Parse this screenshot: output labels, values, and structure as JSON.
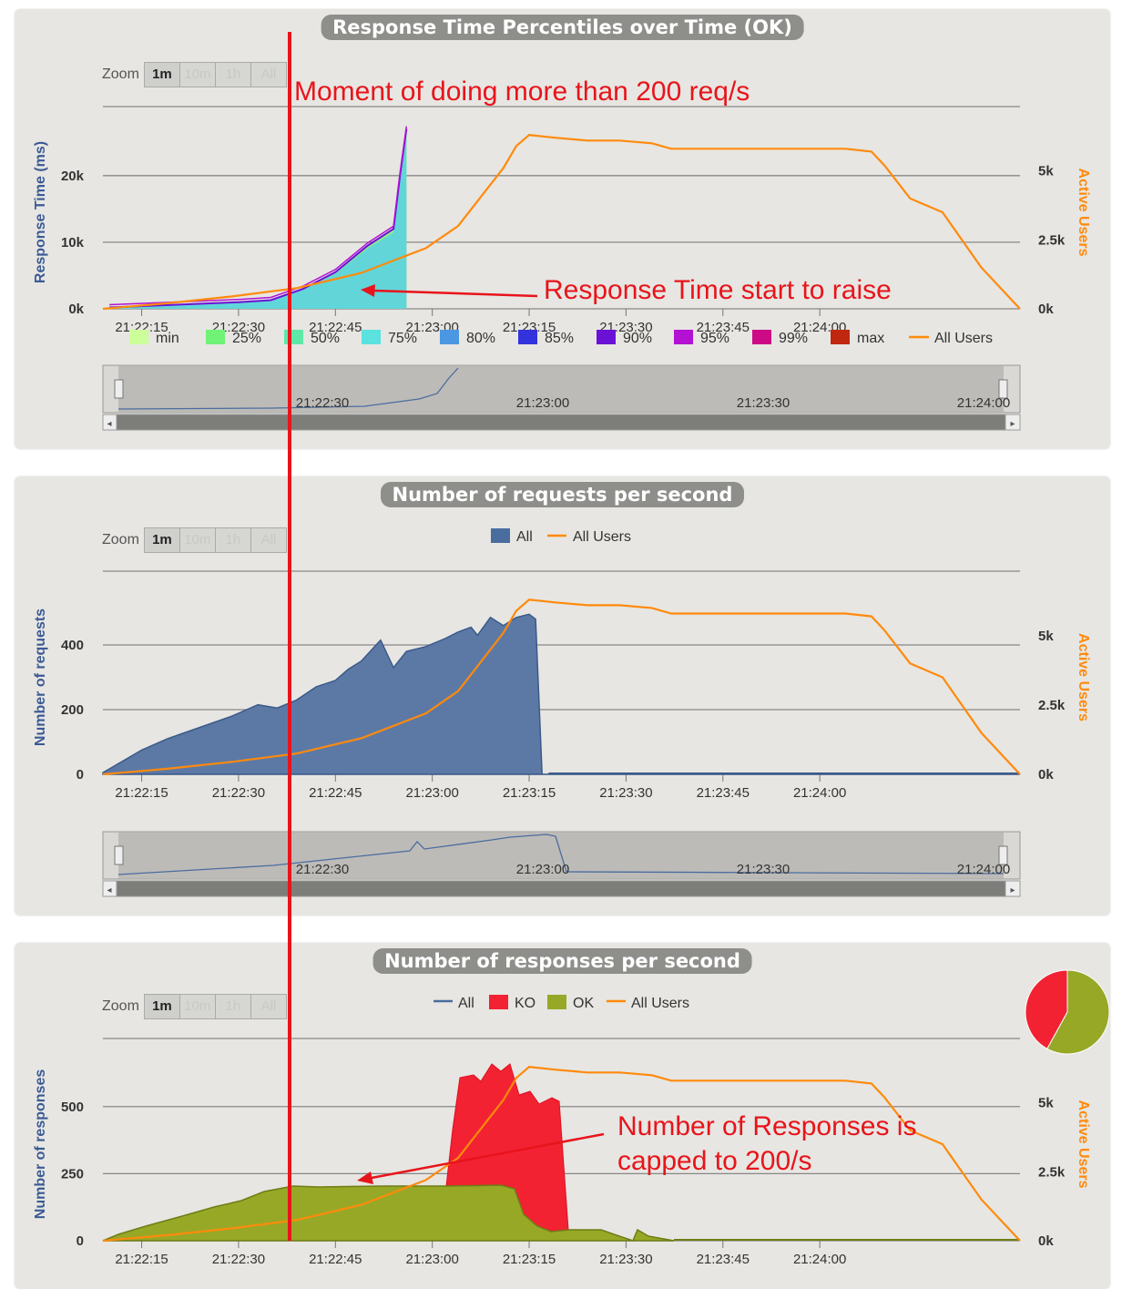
{
  "charts_meta": {
    "zoom_label": "Zoom",
    "zoom_buttons": [
      "1m",
      "10m",
      "1h",
      "All"
    ],
    "right_axis_title": "Active Users",
    "x_ticks": [
      "21:22:15",
      "21:22:30",
      "21:22:45",
      "21:23:00",
      "21:23:15",
      "21:23:30",
      "21:23:45",
      "21:24:00"
    ],
    "nav_ticks": [
      "21:22:30",
      "21:23:00",
      "21:23:30",
      "21:24:00"
    ],
    "right_ticks": [
      "0k",
      "2.5k",
      "5k"
    ]
  },
  "colors": {
    "orange": "#ff8a0c",
    "red_line": "#e8141b",
    "blue": "#4a6da0",
    "green_pct": "#99fd76",
    "ko": "#f22233",
    "ok": "#97a827"
  },
  "annotations": {
    "vertical": "Moment of doing more than 200 req/s",
    "response_time": "Response Time start to raise",
    "responses_cap_1": "Number of Responses is",
    "responses_cap_2": "capped to 200/s"
  },
  "chart_data": [
    {
      "type": "area",
      "title": "Response Time Percentiles over Time (OK)",
      "ylabel": "Response Time (ms)",
      "y2label": "Active Users",
      "ylim": [
        0,
        29000
      ],
      "yticks": [
        "0k",
        "10k",
        "20k"
      ],
      "legend": [
        {
          "name": "min",
          "color": "#ccff99"
        },
        {
          "name": "25%",
          "color": "#70f276"
        },
        {
          "name": "50%",
          "color": "#5ee8a8"
        },
        {
          "name": "75%",
          "color": "#5ae2df"
        },
        {
          "name": "80%",
          "color": "#4b97e2"
        },
        {
          "name": "85%",
          "color": "#3333dd"
        },
        {
          "name": "90%",
          "color": "#6b11d6"
        },
        {
          "name": "95%",
          "color": "#b311d3"
        },
        {
          "name": "99%",
          "color": "#cc0a85"
        },
        {
          "name": "max",
          "color": "#c0270f"
        },
        {
          "name": "All Users",
          "color": "#ff8a0c",
          "line": true
        }
      ],
      "series_percentile_top": {
        "x": [
          "21:22:10",
          "21:22:20",
          "21:22:30",
          "21:22:35",
          "21:22:40",
          "21:22:45",
          "21:22:50",
          "21:22:54",
          "21:22:55",
          "21:22:56"
        ],
        "values": [
          200,
          600,
          1000,
          1300,
          3000,
          5500,
          9500,
          12000,
          20000,
          27000
        ]
      }
    },
    {
      "type": "area",
      "title": "Number of requests per second",
      "ylabel": "Number of requests",
      "y2label": "Active Users",
      "ylim": [
        0,
        600
      ],
      "yticks": [
        "0",
        "200",
        "400"
      ],
      "legend": [
        {
          "name": "All",
          "color": "#4a6da0"
        },
        {
          "name": "All Users",
          "color": "#ff8a0c",
          "line": true
        }
      ],
      "series_all": {
        "x_seconds": [
          0,
          3,
          6,
          10,
          15,
          20,
          24,
          27,
          30,
          33,
          36,
          38,
          40,
          43,
          45,
          47,
          50,
          53,
          55,
          57,
          58,
          60,
          62,
          64,
          66,
          67,
          68,
          69
        ],
        "values": [
          5,
          40,
          75,
          110,
          145,
          180,
          215,
          205,
          230,
          270,
          290,
          325,
          350,
          415,
          330,
          380,
          395,
          420,
          440,
          455,
          430,
          485,
          460,
          485,
          495,
          480,
          0,
          0
        ]
      }
    },
    {
      "type": "area",
      "title": "Number of responses per second",
      "ylabel": "Number of responses",
      "y2label": "Active Users",
      "ylim": [
        0,
        720
      ],
      "yticks": [
        "0",
        "250",
        "500"
      ],
      "legend": [
        {
          "name": "All",
          "color": "#4a6da0",
          "line": true
        },
        {
          "name": "KO",
          "color": "#f22233"
        },
        {
          "name": "OK",
          "color": "#97a827"
        },
        {
          "name": "All Users",
          "color": "#ff8a0c",
          "line": true
        }
      ],
      "pie": [
        {
          "name": "KO",
          "share": 0.42
        },
        {
          "name": "OK",
          "share": 0.58
        }
      ]
    }
  ],
  "active_users": {
    "x_seconds": [
      0,
      10,
      20,
      30,
      40,
      50,
      55,
      62,
      64,
      66,
      70,
      75,
      80,
      85,
      88,
      95,
      100,
      105,
      110,
      115,
      119,
      121,
      125,
      130,
      136,
      142
    ],
    "values": [
      0,
      200,
      450,
      750,
      1300,
      2200,
      3000,
      5100,
      5900,
      6300,
      6200,
      6100,
      6100,
      6000,
      5800,
      5800,
      5800,
      5800,
      5800,
      5800,
      5700,
      5200,
      4000,
      3500,
      1500,
      0
    ]
  }
}
